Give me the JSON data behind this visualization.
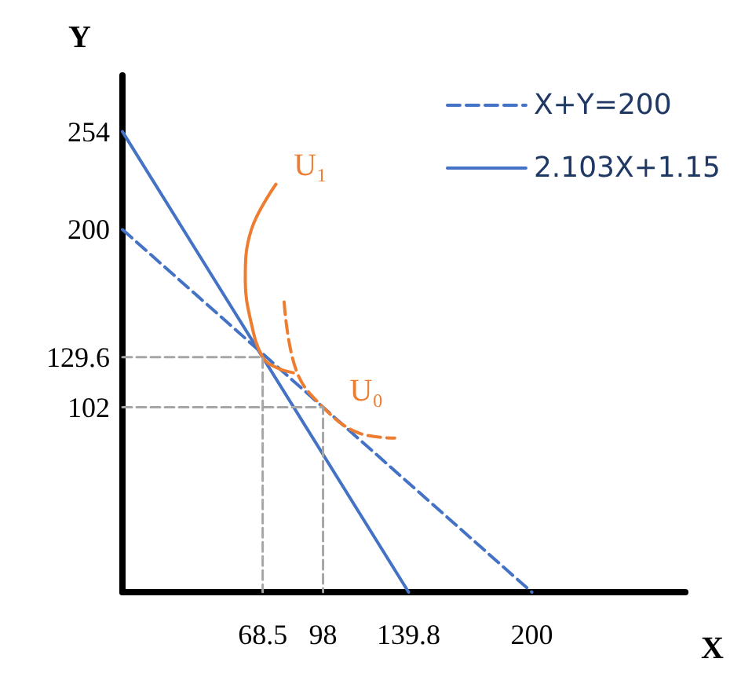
{
  "chart_data": {
    "type": "line",
    "xlabel": "X",
    "ylabel": "Y",
    "xlim": [
      0,
      275
    ],
    "ylim": [
      0,
      285
    ],
    "xticks": [
      68.5,
      98,
      139.8,
      200
    ],
    "yticks": [
      102,
      129.6,
      200,
      254
    ],
    "grid": false,
    "legend": "top right",
    "marker": "none",
    "series": [
      {
        "name": "X+Y=200",
        "color": "#4472c4",
        "line_style": "dashed",
        "x": [
          0,
          200
        ],
        "values": [
          200,
          0
        ]
      },
      {
        "name": "2.103X+1.15",
        "color": "#4472c4",
        "line_style": "solid",
        "x": [
          0,
          139.8
        ],
        "values": [
          254,
          0
        ]
      },
      {
        "color": "#ed7d31",
        "line_style": "solid",
        "x": [
          75,
          63,
          60,
          63,
          68.5,
          75,
          83.5
        ],
        "values": [
          225,
          200,
          172,
          148,
          129.6,
          124,
          121
        ]
      },
      {
        "color": "#ed7d31",
        "line_style": "dashed",
        "x": [
          79,
          85,
          98,
          115,
          133
        ],
        "values": [
          160,
          122,
          102,
          88,
          85
        ]
      },
      {
        "color": "#a6a6a6",
        "line_style": "dashed",
        "x": [
          0,
          68.5,
          68.5
        ],
        "values": [
          129.6,
          129.6,
          0
        ]
      },
      {
        "color": "#a6a6a6",
        "line_style": "dashed",
        "x": [
          0,
          98,
          98
        ],
        "values": [
          102,
          102,
          0
        ]
      }
    ],
    "annotations": [
      "U₁",
      "U₀"
    ]
  }
}
